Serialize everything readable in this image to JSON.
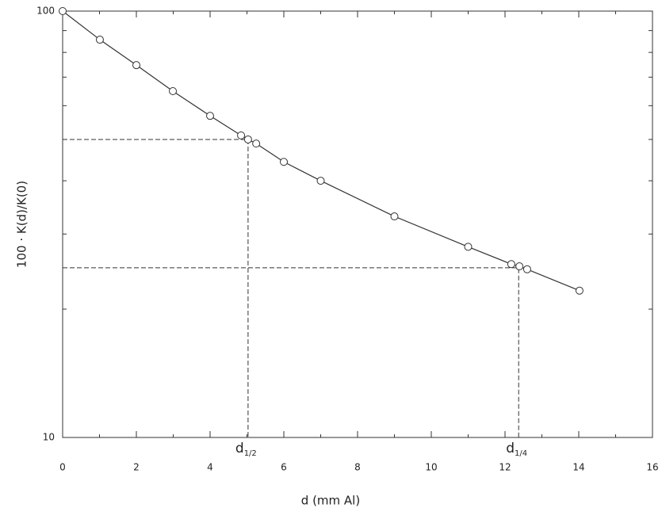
{
  "chart_data": {
    "type": "line",
    "xlabel": "d (mm Al)",
    "ylabel": "100 · K(d)/K(0)",
    "xlim": [
      0,
      16
    ],
    "ylim": [
      10,
      100
    ],
    "ylog": true,
    "xticks": [
      0,
      2,
      4,
      6,
      8,
      10,
      12,
      14,
      16
    ],
    "xminor": [
      1,
      3,
      5,
      7,
      9,
      11,
      13,
      15
    ],
    "yticks": [
      10,
      100
    ],
    "yminor": [
      20,
      30,
      40,
      50,
      60,
      70,
      80,
      90
    ],
    "color": "#333333",
    "x": [
      0,
      1.01,
      2,
      2.99,
      4,
      4.84,
      5.03,
      5.25,
      6,
      7,
      9,
      11,
      12.17,
      12.39,
      12.6,
      14.02
    ],
    "values": [
      100,
      85.7,
      74.7,
      64.9,
      56.8,
      51.1,
      50.0,
      48.9,
      44.3,
      40.0,
      33.0,
      28.0,
      25.5,
      25.2,
      24.8,
      22.1
    ],
    "references": [
      {
        "label": "d",
        "subscript": "1/2",
        "x": 5.03,
        "y": 50
      },
      {
        "label": "d",
        "subscript": "1/4",
        "x": 12.37,
        "y": 25
      }
    ]
  }
}
